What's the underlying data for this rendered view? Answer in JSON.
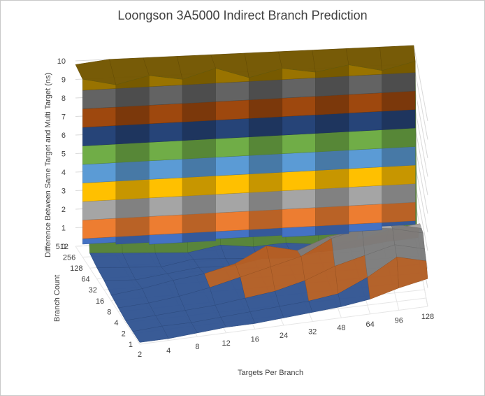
{
  "chart_data": {
    "type": "surface",
    "title": "Loongson 3A5000 Indirect Branch Prediction",
    "xlabel": "Targets Per Branch",
    "ylabel": "Branch Count",
    "zlabel": "Difference Between Same Target and Multi Target (ns)",
    "x_categories": [
      "2",
      "4",
      "8",
      "12",
      "16",
      "24",
      "32",
      "48",
      "64",
      "96",
      "128"
    ],
    "y_categories": [
      "1",
      "2",
      "4",
      "8",
      "16",
      "32",
      "64",
      "128",
      "256",
      "512"
    ],
    "zlim": [
      0,
      10
    ],
    "z_ticks": [
      "0",
      "1",
      "2",
      "3",
      "4",
      "5",
      "6",
      "7",
      "8",
      "9",
      "10"
    ],
    "band_colors": [
      "#4472c4",
      "#ed7d31",
      "#a5a5a5",
      "#ffc000",
      "#5b9bd5",
      "#70ad47",
      "#264478",
      "#9e480e",
      "#636363",
      "#997300"
    ],
    "values": [
      [
        0.1,
        0.1,
        0.2,
        0.3,
        0.3,
        0.4,
        0.5,
        0.6,
        0.8,
        1.2,
        1.5
      ],
      [
        0.1,
        0.2,
        0.2,
        0.3,
        0.4,
        0.5,
        0.6,
        0.8,
        1.5,
        2.4,
        2.0
      ],
      [
        0.1,
        0.2,
        0.3,
        0.4,
        0.6,
        0.8,
        1.2,
        1.8,
        2.2,
        2.6,
        2.2
      ],
      [
        0.2,
        0.3,
        0.5,
        0.8,
        1.2,
        1.6,
        2.0,
        2.8,
        3.2,
        3.0,
        2.6
      ],
      [
        0.3,
        0.5,
        0.8,
        1.0,
        1.4,
        2.2,
        1.8,
        2.4,
        2.6,
        2.8,
        2.4
      ],
      [
        0.5,
        0.4,
        0.6,
        0.8,
        0.7,
        1.0,
        0.9,
        1.2,
        1.6,
        2.0,
        2.2
      ],
      [
        0.6,
        0.5,
        0.4,
        0.7,
        0.6,
        0.5,
        0.8,
        0.6,
        0.7,
        0.9,
        1.0
      ],
      [
        0.8,
        0.7,
        0.6,
        0.5,
        0.8,
        0.6,
        0.7,
        0.5,
        0.6,
        0.8,
        0.9
      ],
      [
        9.6,
        9.2,
        9.6,
        9.3,
        9.8,
        9.2,
        9.6,
        9.3,
        9.6,
        9.2,
        9.6
      ],
      [
        9.8,
        10.0,
        10.0,
        10.0,
        10.0,
        10.0,
        10.0,
        10.0,
        10.0,
        10.0,
        10.0
      ]
    ]
  }
}
